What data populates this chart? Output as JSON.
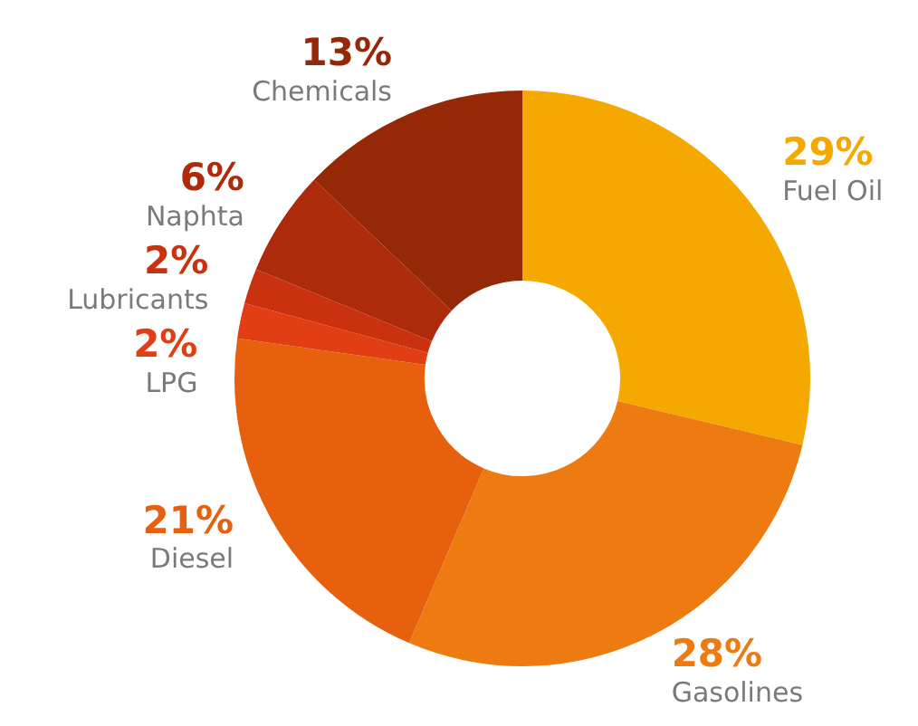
{
  "chart_data": {
    "type": "donut",
    "categories": [
      "Fuel Oil",
      "Gasolines",
      "Diesel",
      "LPG",
      "Lubricants",
      "Naphta",
      "Chemicals"
    ],
    "values": [
      29,
      28,
      21,
      2,
      2,
      6,
      13
    ],
    "value_labels": [
      "29%",
      "28%",
      "21%",
      "2%",
      "2%",
      "6%",
      "13%"
    ],
    "colors": [
      "#f5a800",
      "#ee7a12",
      "#e6600e",
      "#e23e14",
      "#c9310f",
      "#ad2a0a",
      "#952806"
    ],
    "legend": false
  }
}
